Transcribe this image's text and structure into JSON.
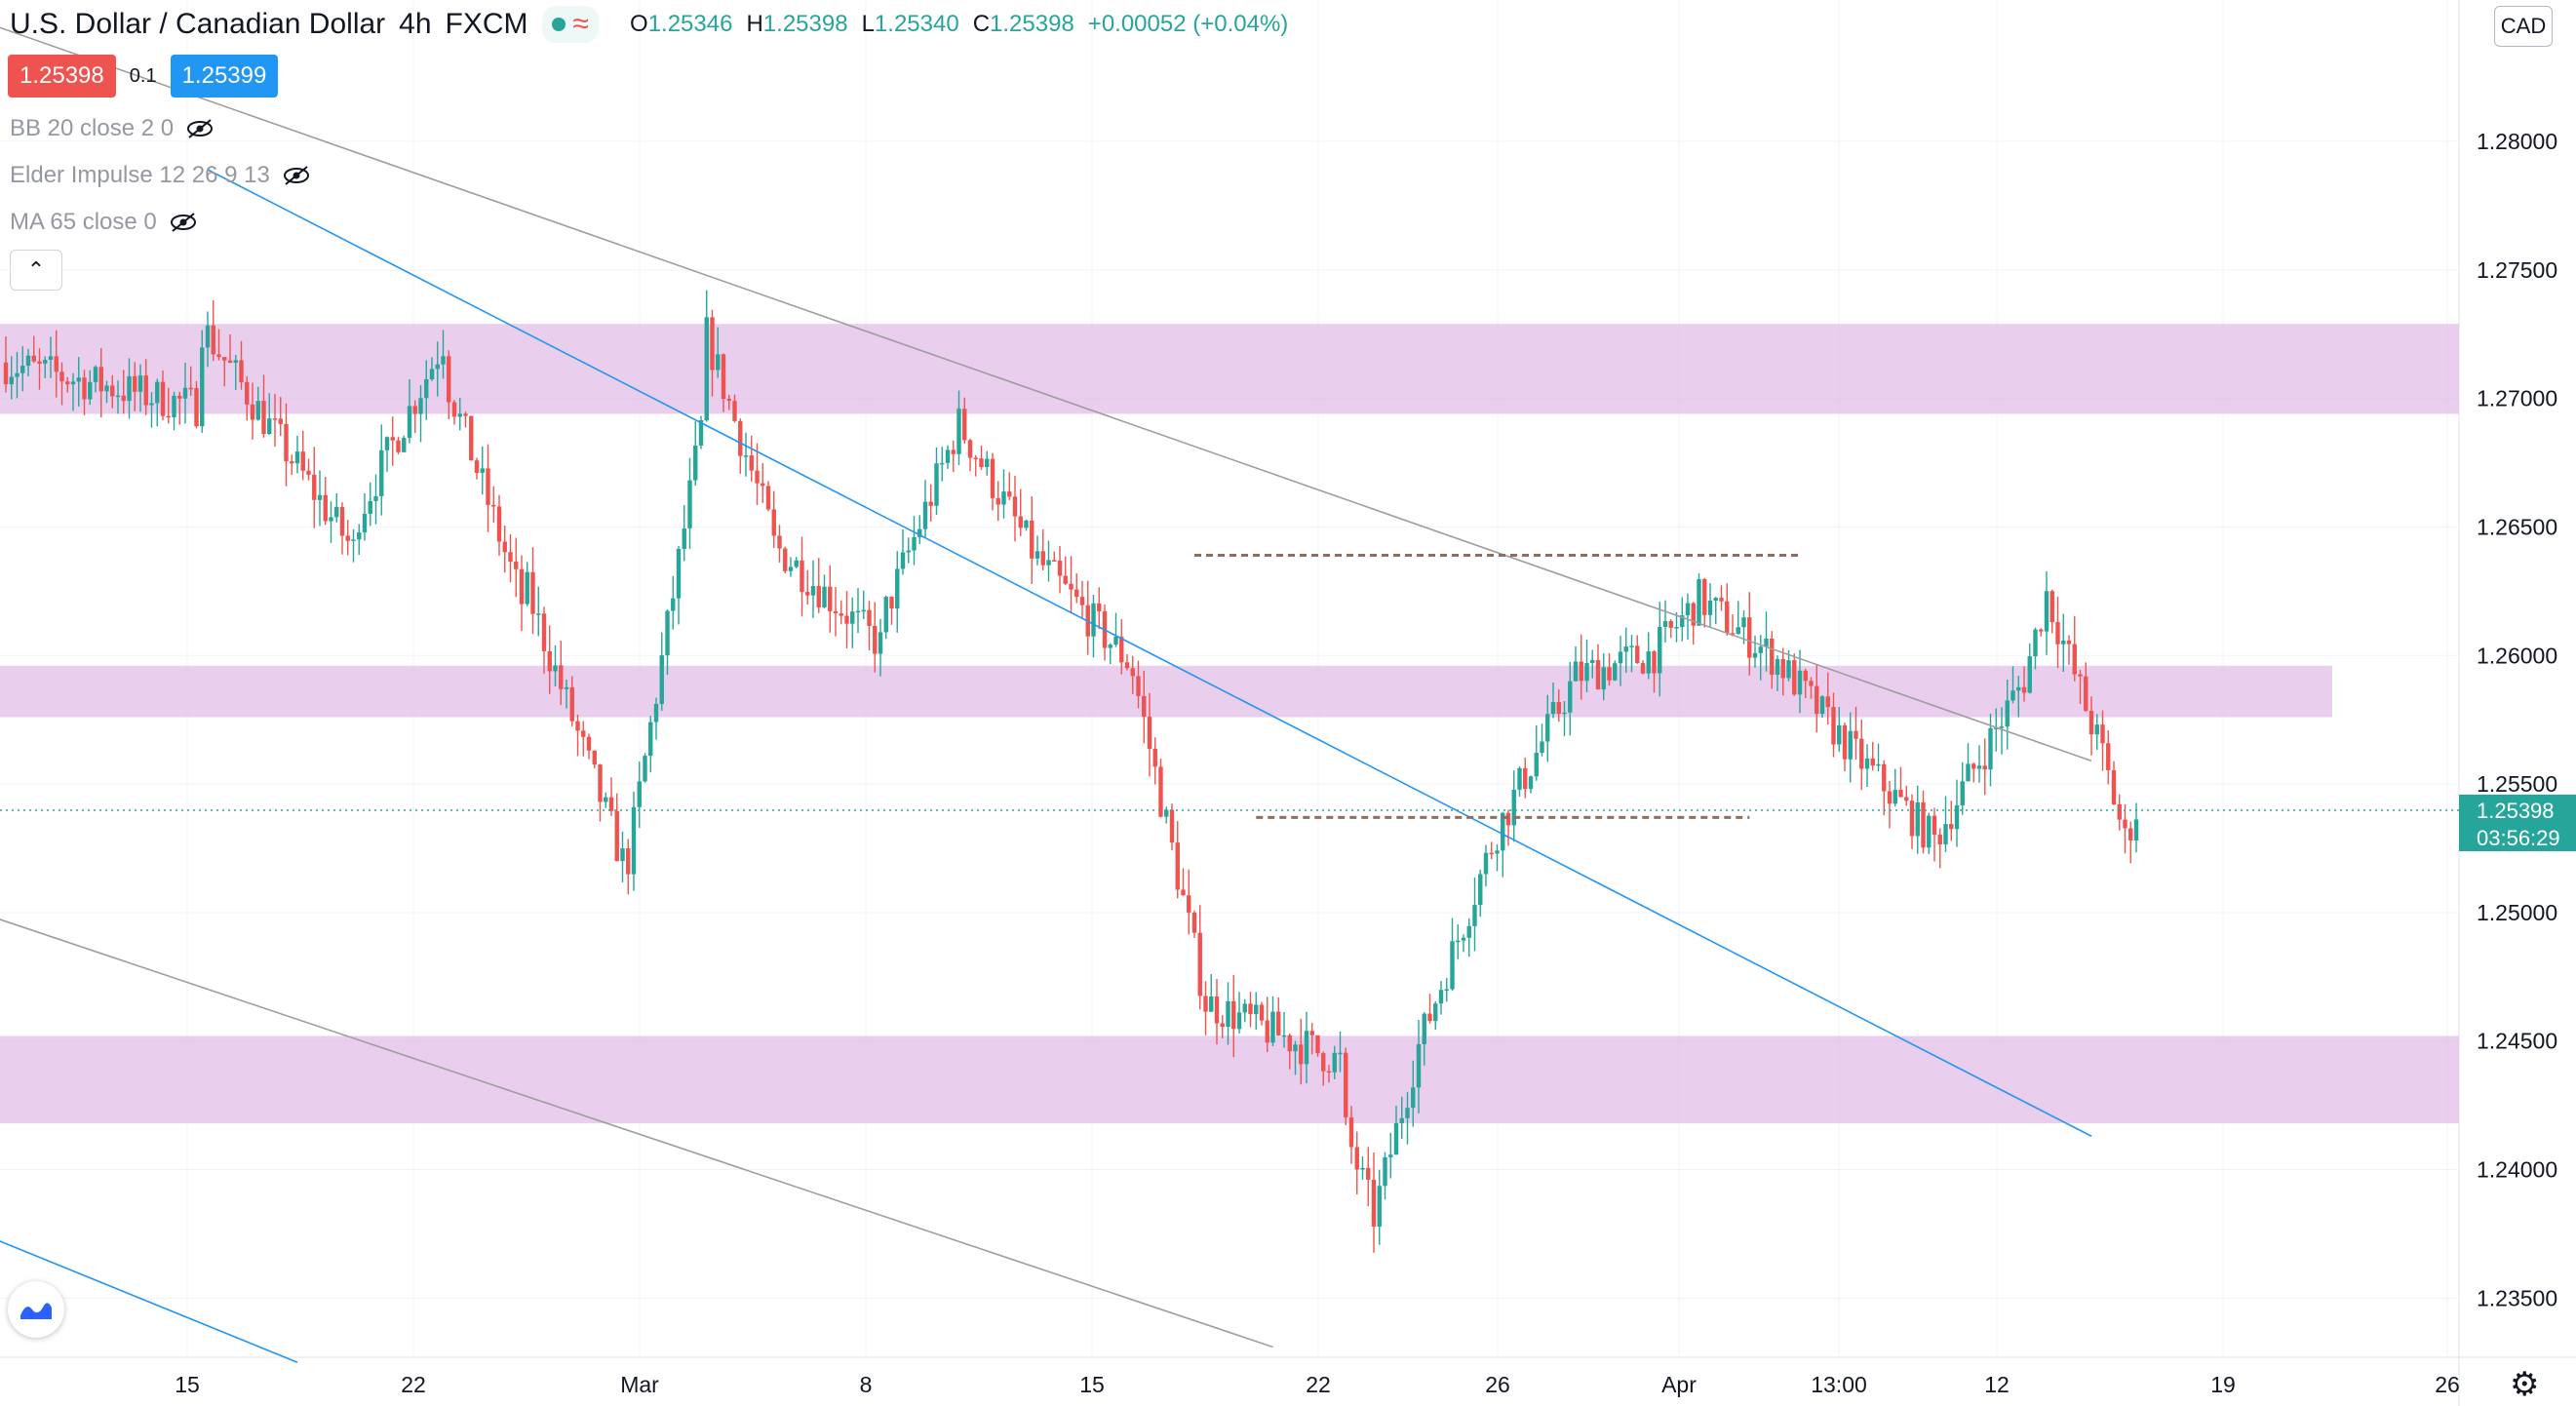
{
  "header": {
    "symbol": "U.S. Dollar / Canadian Dollar",
    "interval": "4h",
    "exchange": "FXCM",
    "approx_icon": "≈",
    "ohlc": {
      "open_label": "O",
      "open": "1.25346",
      "high_label": "H",
      "high": "1.25398",
      "low_label": "L",
      "low": "1.25340",
      "close_label": "C",
      "close": "1.25398",
      "change": "+0.00052 (+0.04%)"
    }
  },
  "trade": {
    "sell": "1.25398",
    "spread": "0.1",
    "buy": "1.25399"
  },
  "indicators": [
    {
      "label": "BB 20 close 2 0"
    },
    {
      "label": "Elder Impulse 12 26 9 13"
    },
    {
      "label": "MA 65 close 0"
    }
  ],
  "currency": "CAD",
  "colors": {
    "up": "#26a69a",
    "down": "#ef5350",
    "zone": "#e1bee7",
    "trendline_gray": "#9e9e9e",
    "trendline_blue": "#2196f3",
    "level_dashed": "#8d6e63",
    "grid": "#f0f3fa"
  },
  "chart_data": {
    "type": "candlestick",
    "symbol": "USDCAD",
    "interval": "4h",
    "y_ticks": [
      "1.23500",
      "1.24000",
      "1.24500",
      "1.25000",
      "1.25500",
      "1.26000",
      "1.26500",
      "1.27000",
      "1.27500",
      "1.28000"
    ],
    "ylim": [
      1.2327,
      1.2855
    ],
    "x_ticks": [
      "15",
      "22",
      "Mar",
      "8",
      "15",
      "22",
      "26",
      "Apr",
      "13:00",
      "12",
      "19",
      "26"
    ],
    "last_price": "1.25398",
    "countdown": "03:56:29",
    "zones": [
      {
        "top": 1.2729,
        "bottom": 1.2694
      },
      {
        "top": 1.2596,
        "bottom": 1.2576
      },
      {
        "top": 1.2452,
        "bottom": 1.2418
      }
    ],
    "horizontal_levels": [
      {
        "price": 1.2639,
        "from_bar": 212,
        "to_bar": 320
      },
      {
        "price": 1.2537,
        "from_bar": 223,
        "to_bar": 311
      }
    ],
    "trendlines": [
      {
        "color": "gray",
        "from": [
          -2,
          1.2845
        ],
        "to": [
          372,
          1.2559
        ]
      },
      {
        "color": "gray",
        "from": [
          -2,
          1.2498
        ],
        "to": [
          226,
          1.2331
        ]
      },
      {
        "color": "blue",
        "from": [
          36,
          1.2789
        ],
        "to": [
          372,
          1.2413
        ]
      },
      {
        "color": "blue",
        "from": [
          -2,
          1.2373
        ],
        "to": [
          52,
          1.2325
        ]
      }
    ],
    "segments": [
      [
        1.2714,
        1.2697,
        35
      ],
      [
        1.2731,
        1.2641,
        28
      ],
      [
        1.2651,
        1.2722,
        16
      ],
      [
        1.2711,
        1.2621,
        14
      ],
      [
        1.2631,
        1.252,
        18
      ],
      [
        1.2508,
        1.2688,
        14
      ],
      [
        1.2731,
        1.2652,
        12
      ],
      [
        1.2645,
        1.2604,
        20
      ],
      [
        1.2612,
        1.269,
        14
      ],
      [
        1.269,
        1.2637,
        14
      ],
      [
        1.2637,
        1.2598,
        16
      ],
      [
        1.2604,
        1.2465,
        14
      ],
      [
        1.2465,
        1.2442,
        24
      ],
      [
        1.2421,
        1.2382,
        6
      ],
      [
        1.2382,
        1.2448,
        8
      ],
      [
        1.2448,
        1.2532,
        14
      ],
      [
        1.2532,
        1.2592,
        14
      ],
      [
        1.2592,
        1.2601,
        14
      ],
      [
        1.2601,
        1.2622,
        8
      ],
      [
        1.2622,
        1.2598,
        14
      ],
      [
        1.2598,
        1.2561,
        14
      ],
      [
        1.2561,
        1.2528,
        14
      ],
      [
        1.2528,
        1.2591,
        16
      ],
      [
        1.2591,
        1.2624,
        4
      ],
      [
        1.2624,
        1.2561,
        10
      ],
      [
        1.2561,
        1.2528,
        4
      ],
      [
        1.2528,
        1.254,
        2
      ]
    ],
    "seed": 7
  }
}
